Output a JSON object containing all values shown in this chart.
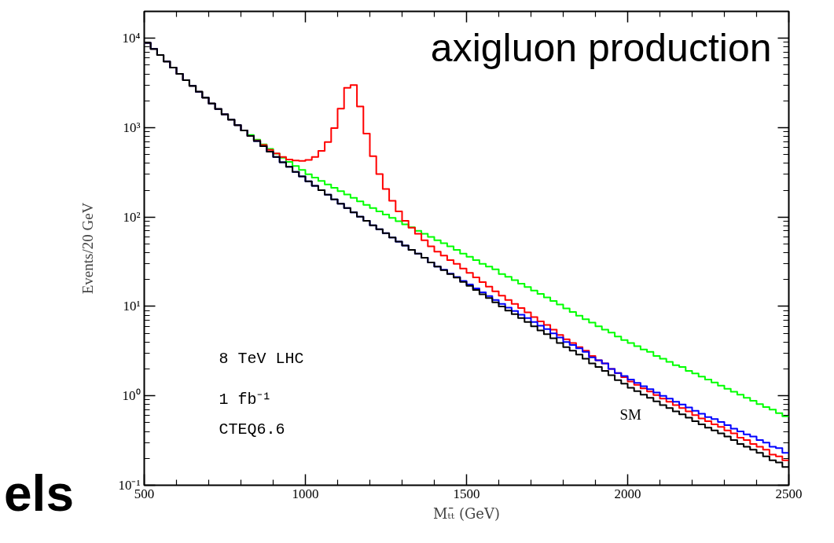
{
  "chart_data": {
    "type": "histogram",
    "title": "axigluon production",
    "xlabel": "Mₜₜ̄ (GeV)",
    "ylabel": "Events/20 GeV",
    "bins": [
      500,
      520,
      540,
      560,
      580,
      600,
      620,
      640,
      660,
      680,
      700,
      720,
      740,
      760,
      780,
      800,
      820,
      840,
      860,
      880,
      900,
      920,
      940,
      960,
      980,
      1000,
      1020,
      1040,
      1060,
      1080,
      1100,
      1120,
      1140,
      1160,
      1180,
      1200,
      1220,
      1240,
      1260,
      1280,
      1300,
      1320,
      1340,
      1360,
      1380,
      1400,
      1420,
      1440,
      1460,
      1480,
      1500,
      1520,
      1540,
      1560,
      1580,
      1600,
      1620,
      1640,
      1660,
      1680,
      1700,
      1720,
      1740,
      1760,
      1780,
      1800,
      1820,
      1840,
      1860,
      1880,
      1900,
      1920,
      1940,
      1960,
      1980,
      2000,
      2020,
      2040,
      2060,
      2080,
      2100,
      2120,
      2140,
      2160,
      2180,
      2200,
      2220,
      2240,
      2260,
      2280,
      2300,
      2320,
      2340,
      2360,
      2380,
      2400,
      2420,
      2440,
      2460,
      2480,
      2500
    ],
    "series": [
      {
        "color": "#00ff00",
        "values": [
          8900,
          7600,
          6500,
          5500,
          4700,
          4000,
          3400,
          2940,
          2520,
          2170,
          1860,
          1620,
          1410,
          1230,
          1070,
          930,
          830,
          735,
          650,
          580,
          513,
          461,
          415,
          373,
          336,
          302,
          277,
          254,
          232,
          213,
          195,
          179,
          164,
          150,
          137,
          126,
          116,
          107,
          98,
          90,
          83,
          77,
          70,
          65,
          60,
          55,
          51,
          47,
          43,
          39,
          36,
          33,
          30,
          28,
          26,
          23,
          21.5,
          19.7,
          18.0,
          16.5,
          15.1,
          13.8,
          12.6,
          11.5,
          10.5,
          9.5,
          8.7,
          7.9,
          7.2,
          6.6,
          6.0,
          5.5,
          5.1,
          4.6,
          4.2,
          3.9,
          3.6,
          3.3,
          3.1,
          2.8,
          2.6,
          2.4,
          2.2,
          2.1,
          1.9,
          1.78,
          1.64,
          1.52,
          1.41,
          1.3,
          1.2,
          1.11,
          1.03,
          0.95,
          0.88,
          0.81,
          0.75,
          0.7,
          0.64,
          0.59
        ]
      },
      {
        "color": "#ff0000",
        "values": [
          8900,
          7600,
          6500,
          5500,
          4700,
          4000,
          3400,
          2940,
          2520,
          2170,
          1860,
          1620,
          1410,
          1230,
          1070,
          930,
          810,
          720,
          640,
          565,
          514,
          471,
          440,
          430,
          426,
          437,
          471,
          550,
          690,
          990,
          1630,
          2800,
          3000,
          1730,
          860,
          480,
          303,
          206,
          152,
          116,
          91,
          76,
          65,
          55,
          47,
          41,
          37,
          33,
          30,
          26.6,
          23.7,
          21.1,
          18.7,
          16.7,
          14.8,
          13.2,
          11.8,
          10.7,
          9.6,
          8.6,
          7.6,
          6.8,
          6.2,
          5.5,
          4.8,
          4.3,
          3.9,
          3.5,
          3.2,
          2.8,
          2.5,
          2.3,
          2.0,
          1.8,
          1.62,
          1.45,
          1.33,
          1.21,
          1.12,
          1.02,
          0.93,
          0.86,
          0.79,
          0.73,
          0.67,
          0.61,
          0.56,
          0.52,
          0.48,
          0.45,
          0.41,
          0.38,
          0.34,
          0.32,
          0.29,
          0.27,
          0.25,
          0.22,
          0.21,
          0.19
        ]
      },
      {
        "color": "#0000ff",
        "values": [
          8900,
          7600,
          6500,
          5500,
          4700,
          4000,
          3400,
          2940,
          2520,
          2170,
          1860,
          1620,
          1410,
          1230,
          1070,
          930,
          810,
          710,
          620,
          540,
          470,
          410,
          365,
          320,
          285,
          251,
          224,
          200,
          178,
          158,
          141,
          126,
          113,
          101,
          91,
          81,
          73,
          66,
          59,
          53,
          48,
          43,
          39,
          35,
          31,
          28,
          25.7,
          23.3,
          21.4,
          19.3,
          17.6,
          15.9,
          14.4,
          13.1,
          11.8,
          10.7,
          9.7,
          8.9,
          8.1,
          7.4,
          6.7,
          6.1,
          5.6,
          5.0,
          4.5,
          4.0,
          3.7,
          3.4,
          3.1,
          2.7,
          2.5,
          2.3,
          2.0,
          1.8,
          1.67,
          1.52,
          1.4,
          1.28,
          1.19,
          1.09,
          1.0,
          0.93,
          0.86,
          0.8,
          0.74,
          0.68,
          0.63,
          0.58,
          0.55,
          0.51,
          0.47,
          0.43,
          0.4,
          0.37,
          0.35,
          0.32,
          0.3,
          0.27,
          0.26,
          0.23
        ]
      },
      {
        "color": "#000000",
        "values": [
          8900,
          7600,
          6500,
          5500,
          4700,
          4000,
          3400,
          2940,
          2520,
          2170,
          1860,
          1620,
          1410,
          1230,
          1070,
          930,
          810,
          710,
          620,
          540,
          470,
          410,
          365,
          320,
          285,
          251,
          224,
          200,
          178,
          158,
          141,
          126,
          113,
          101,
          91,
          81,
          73,
          66,
          59,
          53,
          48,
          43,
          39,
          35,
          31,
          28,
          25.5,
          23,
          21,
          18.8,
          17,
          15.3,
          13.7,
          12.4,
          11.1,
          10,
          9.0,
          8.2,
          7.4,
          6.7,
          6.0,
          5.4,
          4.9,
          4.4,
          3.9,
          3.5,
          3.2,
          2.9,
          2.6,
          2.3,
          2.1,
          1.9,
          1.7,
          1.5,
          1.37,
          1.23,
          1.13,
          1.03,
          0.95,
          0.87,
          0.79,
          0.73,
          0.67,
          0.62,
          0.57,
          0.52,
          0.48,
          0.44,
          0.41,
          0.38,
          0.35,
          0.32,
          0.29,
          0.27,
          0.25,
          0.23,
          0.21,
          0.19,
          0.18,
          0.16
        ]
      }
    ],
    "xlim": [
      500,
      2500
    ],
    "ylim": [
      0.1,
      20000
    ],
    "log": true,
    "xticks": [
      500,
      1000,
      1500,
      2000,
      2500
    ],
    "yticks": [
      {
        "value": 0.1,
        "label": "10⁻¹"
      },
      {
        "value": 1,
        "label": "10⁰"
      },
      {
        "value": 10,
        "label": "10¹"
      },
      {
        "value": 100,
        "label": "10²"
      },
      {
        "value": 1000,
        "label": "10³"
      },
      {
        "value": 10000,
        "label": "10⁴"
      }
    ],
    "annotations": [
      "8 TeV LHC",
      "1 fb⁻¹",
      "CTEQ6.6",
      "SM",
      "els"
    ]
  }
}
